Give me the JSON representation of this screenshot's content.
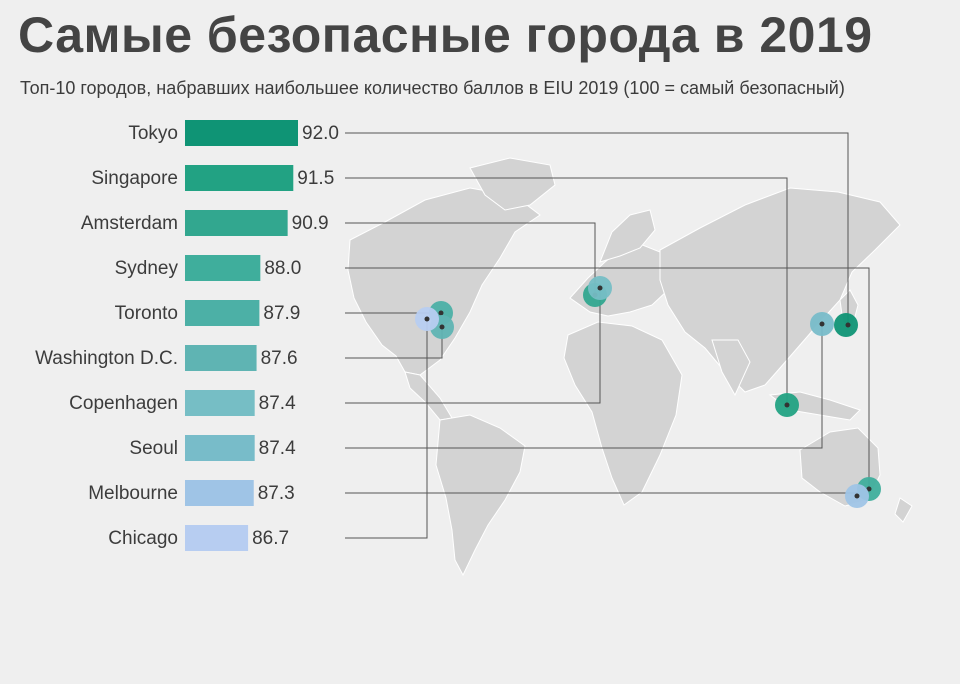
{
  "header": {
    "title": "Самые безопасные города в 2019",
    "subtitle": "Топ-10 городов, набравших наибольшее количество баллов в EIU 2019 (100 = самый безопасный)"
  },
  "chart_data": {
    "type": "bar",
    "orientation": "horizontal",
    "title": "Самые безопасные города в 2019",
    "subtitle": "Топ-10 городов, набравших наибольшее количество баллов в EIU 2019 (100 = самый безопасный)",
    "categories": [
      "Tokyo",
      "Singapore",
      "Amsterdam",
      "Sydney",
      "Toronto",
      "Washington D.C.",
      "Copenhagen",
      "Seoul",
      "Melbourne",
      "Chicago"
    ],
    "values": [
      92.0,
      91.5,
      90.9,
      88.0,
      87.9,
      87.6,
      87.4,
      87.4,
      87.3,
      86.7
    ],
    "value_labels": [
      "92.0",
      "91.5",
      "90.9",
      "88.0",
      "87.9",
      "87.6",
      "87.4",
      "87.4",
      "87.3",
      "86.7"
    ],
    "colors": [
      "#0f9475",
      "#22a283",
      "#32a78f",
      "#3fae9c",
      "#4cb0a6",
      "#5fb4b3",
      "#76bec5",
      "#78bcc9",
      "#9fc4e6",
      "#b7cdf1"
    ],
    "xlim": [
      80,
      92
    ],
    "background": "#efefef",
    "map_color": "#d3d3d3",
    "legend": "none",
    "grid": false
  }
}
